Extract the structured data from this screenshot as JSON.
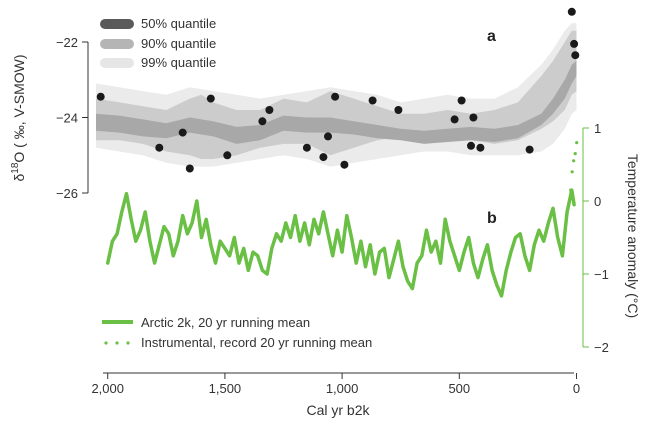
{
  "chart_data": {
    "type": "line",
    "panels": [
      {
        "panel_label": "a",
        "ylabel_main": "δ",
        "ylabel_sup": "18",
        "ylabel_rest": "O ( ‰, V-SMOW)",
        "ylim": [
          -27.2,
          -21.2
        ],
        "yticks": [
          -22,
          -24,
          -26
        ],
        "ytick_labels": [
          "−22",
          "−24",
          "−26"
        ],
        "bands": [
          {
            "name": "99% quantile",
            "color": "#ebebeb",
            "x": [
              2050,
              1950,
              1850,
              1750,
              1650,
              1550,
              1450,
              1350,
              1250,
              1150,
              1050,
              950,
              850,
              750,
              650,
              550,
              450,
              350,
              250,
              150,
              100,
              50,
              20,
              0
            ],
            "upper": [
              -23.1,
              -23.2,
              -23.3,
              -23.4,
              -23.2,
              -23.3,
              -23.4,
              -23.5,
              -23.4,
              -23.3,
              -23.2,
              -23.3,
              -23.4,
              -23.6,
              -23.5,
              -23.4,
              -23.5,
              -23.5,
              -23.2,
              -22.6,
              -22.2,
              -21.7,
              -21.5,
              -21.5
            ],
            "lower": [
              -24.8,
              -24.9,
              -25.0,
              -25.2,
              -25.3,
              -25.3,
              -25.2,
              -25.1,
              -25.0,
              -25.1,
              -25.3,
              -25.2,
              -25.1,
              -25.0,
              -24.9,
              -24.9,
              -25.0,
              -25.0,
              -25.0,
              -24.9,
              -24.7,
              -24.3,
              -23.9,
              -23.8
            ]
          },
          {
            "name": "90% quantile",
            "color": "#cccccc",
            "x": [
              2050,
              1950,
              1850,
              1750,
              1650,
              1600,
              1550,
              1450,
              1350,
              1250,
              1150,
              1050,
              950,
              850,
              750,
              650,
              550,
              450,
              350,
              250,
              150,
              100,
              50,
              20,
              0
            ],
            "upper": [
              -23.5,
              -23.6,
              -23.7,
              -23.8,
              -23.5,
              -23.4,
              -23.6,
              -23.8,
              -23.8,
              -23.5,
              -23.6,
              -23.3,
              -23.5,
              -23.7,
              -23.9,
              -23.9,
              -23.8,
              -23.9,
              -23.8,
              -23.6,
              -22.9,
              -22.5,
              -22.0,
              -21.7,
              -21.7
            ],
            "lower": [
              -24.6,
              -24.6,
              -24.7,
              -24.9,
              -25.0,
              -25.1,
              -25.1,
              -25.0,
              -24.8,
              -24.7,
              -24.7,
              -25.0,
              -24.8,
              -24.6,
              -24.5,
              -24.4,
              -24.5,
              -24.6,
              -24.7,
              -24.6,
              -24.3,
              -24.1,
              -23.8,
              -23.4,
              -23.3
            ]
          },
          {
            "name": "50% quantile",
            "color": "#a8a8a8",
            "x": [
              2050,
              1950,
              1850,
              1750,
              1650,
              1550,
              1450,
              1350,
              1250,
              1150,
              1050,
              950,
              850,
              750,
              650,
              550,
              450,
              350,
              250,
              150,
              100,
              50,
              20,
              0
            ],
            "upper": [
              -23.9,
              -23.95,
              -24.05,
              -24.15,
              -24.0,
              -24.1,
              -24.25,
              -24.2,
              -23.95,
              -24.0,
              -24.0,
              -24.1,
              -24.2,
              -24.3,
              -24.35,
              -24.3,
              -24.25,
              -24.3,
              -24.2,
              -23.9,
              -23.5,
              -23.0,
              -22.6,
              -22.5
            ],
            "lower": [
              -24.35,
              -24.4,
              -24.5,
              -24.55,
              -24.4,
              -24.5,
              -24.7,
              -24.6,
              -24.35,
              -24.4,
              -24.4,
              -24.45,
              -24.55,
              -24.6,
              -24.7,
              -24.65,
              -24.6,
              -24.65,
              -24.55,
              -24.2,
              -23.9,
              -23.5,
              -23.1,
              -22.9
            ]
          }
        ],
        "points": {
          "color": "#1a1a1a",
          "x": [
            2030,
            1780,
            1680,
            1650,
            1560,
            1490,
            1340,
            1310,
            1150,
            1080,
            1060,
            1030,
            990,
            870,
            760,
            520,
            490,
            450,
            440,
            410,
            200,
            20,
            5,
            10
          ],
          "y": [
            -23.45,
            -24.8,
            -24.4,
            -25.35,
            -23.5,
            -25.0,
            -24.1,
            -23.8,
            -24.8,
            -25.05,
            -24.5,
            -23.45,
            -25.25,
            -23.55,
            -23.8,
            -24.05,
            -23.55,
            -24.75,
            -24.0,
            -24.8,
            -24.85,
            -21.2,
            -22.35,
            -22.05
          ]
        }
      },
      {
        "panel_label": "b",
        "ylabel": "Temperature anomaly (°C)",
        "ylim": [
          -2,
          1
        ],
        "yticks": [
          1,
          0,
          -1,
          -2
        ],
        "ytick_labels": [
          "1",
          "0",
          "−1",
          "−2"
        ],
        "series": [
          {
            "name": "Arctic 2k, 20 yr running mean",
            "style": "solid",
            "color": "#6abf45",
            "x": [
              2000,
              1980,
              1960,
              1940,
              1920,
              1900,
              1880,
              1860,
              1840,
              1820,
              1800,
              1780,
              1760,
              1740,
              1720,
              1700,
              1680,
              1660,
              1640,
              1620,
              1600,
              1580,
              1560,
              1540,
              1520,
              1500,
              1480,
              1460,
              1440,
              1420,
              1400,
              1380,
              1360,
              1340,
              1320,
              1300,
              1280,
              1260,
              1240,
              1220,
              1200,
              1180,
              1160,
              1140,
              1120,
              1100,
              1080,
              1060,
              1040,
              1020,
              1000,
              980,
              960,
              940,
              920,
              900,
              880,
              860,
              840,
              820,
              800,
              780,
              760,
              740,
              720,
              700,
              680,
              660,
              640,
              620,
              600,
              580,
              560,
              540,
              520,
              500,
              480,
              460,
              440,
              420,
              400,
              380,
              360,
              340,
              320,
              300,
              280,
              260,
              240,
              220,
              200,
              180,
              160,
              140,
              120,
              100,
              80,
              60,
              40,
              20,
              10
            ],
            "values": [
              -0.85,
              -0.55,
              -0.45,
              -0.15,
              0.1,
              -0.25,
              -0.55,
              -0.4,
              -0.15,
              -0.55,
              -0.85,
              -0.6,
              -0.35,
              -0.45,
              -0.75,
              -0.55,
              -0.2,
              -0.45,
              -0.3,
              0.0,
              -0.5,
              -0.25,
              -0.6,
              -0.85,
              -0.55,
              -0.65,
              -0.75,
              -0.5,
              -0.85,
              -0.65,
              -0.95,
              -0.7,
              -0.75,
              -0.95,
              -1.0,
              -0.65,
              -0.45,
              -0.55,
              -0.3,
              -0.5,
              -0.2,
              -0.55,
              -0.3,
              -0.6,
              -0.25,
              -0.45,
              -0.15,
              -0.45,
              -0.75,
              -0.4,
              -0.7,
              -0.2,
              -0.5,
              -0.85,
              -0.55,
              -0.9,
              -0.6,
              -1.0,
              -0.7,
              -0.65,
              -1.05,
              -0.8,
              -0.55,
              -0.9,
              -1.1,
              -1.2,
              -0.85,
              -0.75,
              -0.4,
              -0.7,
              -0.55,
              -0.85,
              -0.25,
              -0.55,
              -0.75,
              -0.95,
              -0.7,
              -0.5,
              -0.85,
              -1.05,
              -0.8,
              -0.6,
              -0.95,
              -1.15,
              -1.3,
              -0.95,
              -0.7,
              -0.5,
              -0.45,
              -0.75,
              -0.95,
              -0.6,
              -0.4,
              -0.55,
              -0.3,
              -0.1,
              -0.5,
              -0.75,
              -0.15,
              0.15,
              -0.05
            ]
          },
          {
            "name": "Instrumental, record 20 yr running mean",
            "style": "dotted",
            "color": "#6abf45",
            "x": [
              12,
              9,
              6,
              3,
              0
            ],
            "values": [
              0.15,
              0.4,
              0.55,
              0.65,
              0.8
            ]
          }
        ]
      }
    ],
    "x": {
      "label": "Cal yr b2k",
      "reversed": true,
      "xlim": [
        2050,
        -15
      ],
      "ticks": [
        2000,
        1500,
        1000,
        500,
        0
      ],
      "tick_labels": [
        "2,000",
        "1,500",
        "1,000",
        "500",
        "0"
      ]
    }
  }
}
